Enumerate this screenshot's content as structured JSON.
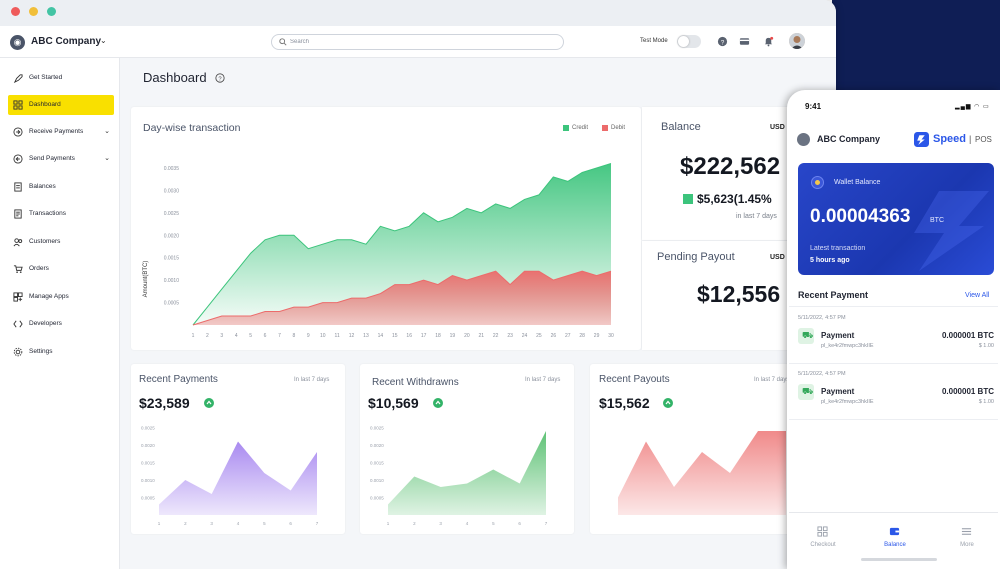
{
  "window": {
    "controls": [
      "close",
      "minimize",
      "maximize"
    ]
  },
  "topbar": {
    "company": "ABC Company",
    "search_placeholder": "Search",
    "test_mode_label": "Test Mode",
    "test_mode_on": false,
    "icons": [
      "help-icon",
      "card-icon",
      "bell-icon",
      "avatar"
    ]
  },
  "sidebar": {
    "items": [
      {
        "label": "Get Started",
        "icon": "rocket-icon",
        "active": false,
        "expandable": false
      },
      {
        "label": "Dashboard",
        "icon": "grid-icon",
        "active": true,
        "expandable": false
      },
      {
        "label": "Receive Payments",
        "icon": "receive-icon",
        "active": false,
        "expandable": true
      },
      {
        "label": "Send Payments",
        "icon": "send-icon",
        "active": false,
        "expandable": true
      },
      {
        "label": "Balances",
        "icon": "balance-icon",
        "active": false,
        "expandable": false
      },
      {
        "label": "Transactions",
        "icon": "transactions-icon",
        "active": false,
        "expandable": false
      },
      {
        "label": "Customers",
        "icon": "customers-icon",
        "active": false,
        "expandable": false
      },
      {
        "label": "Orders",
        "icon": "cart-icon",
        "active": false,
        "expandable": false
      },
      {
        "label": "Manage Apps",
        "icon": "apps-icon",
        "active": false,
        "expandable": false
      },
      {
        "label": "Developers",
        "icon": "code-icon",
        "active": false,
        "expandable": false
      },
      {
        "label": "Settings",
        "icon": "gear-icon",
        "active": false,
        "expandable": false
      }
    ]
  },
  "main": {
    "title": "Dashboard"
  },
  "day_wise": {
    "title": "Day-wise transaction",
    "legend": {
      "credit": "Credit",
      "debit": "Debit"
    },
    "ylabel": "Amount(BTC)",
    "y_ticks": [
      "0.0035",
      "0.0030",
      "0.0025",
      "0.0020",
      "0.0015",
      "0.0010",
      "0.0005"
    ],
    "colors": {
      "credit": "#3cc47c",
      "debit": "#ec6b6b"
    }
  },
  "balance": {
    "title": "Balance",
    "currency": "USD",
    "amount": "$222,562",
    "change": "$5,623(1.45%",
    "period": "in last 7 days"
  },
  "pending": {
    "title": "Pending Payout",
    "currency": "USD",
    "amount": "$12,556"
  },
  "recent_payments": {
    "title": "Recent Payments",
    "period": "In last 7 days",
    "amount": "$23,589",
    "y_ticks": [
      "0.0025",
      "0.0020",
      "0.0015",
      "0.0010",
      "0.0005"
    ],
    "x_ticks": [
      "1",
      "2",
      "3",
      "4",
      "5",
      "6",
      "7"
    ]
  },
  "recent_withdrawns": {
    "title": "Recent Withdrawns",
    "period": "In last 7 days",
    "amount": "$10,569",
    "y_ticks": [
      "0.0025",
      "0.0020",
      "0.0015",
      "0.0010",
      "0.0005"
    ],
    "x_ticks": [
      "1",
      "2",
      "3",
      "4",
      "5",
      "6",
      "7"
    ]
  },
  "recent_payouts": {
    "title": "Recent Payouts",
    "period": "In last 7 days",
    "amount": "$15,562"
  },
  "phone": {
    "time": "9:41",
    "company": "ABC Company",
    "brand": "Speed",
    "brand_suffix": "POS",
    "wallet_label": "Wallet Balance",
    "wallet_amount": "0.00004363",
    "wallet_unit": "BTC",
    "latest_label": "Latest transaction",
    "latest_time": "5 hours ago",
    "recent_title": "Recent Payment",
    "view_all": "View All",
    "payments": [
      {
        "date": "5/11/2022, 4:57 PM",
        "title": "Payment",
        "id": "pl_ke4r2fmwpc3hkIIE",
        "btc": "0.000001 BTC",
        "usd": "$ 1.00"
      },
      {
        "date": "5/11/2022, 4:57 PM",
        "title": "Payment",
        "id": "pl_ke4r2fmwpc3hkIIE",
        "btc": "0.000001 BTC",
        "usd": "$ 1.00"
      }
    ],
    "tabs": [
      {
        "label": "Checkout",
        "icon": "grid-icon",
        "active": false
      },
      {
        "label": "Balance",
        "icon": "wallet-icon",
        "active": true
      },
      {
        "label": "More",
        "icon": "menu-icon",
        "active": false
      }
    ]
  },
  "chart_data": [
    {
      "type": "area",
      "title": "Day-wise transaction",
      "xlabel": "",
      "ylabel": "Amount(BTC)",
      "categories": [
        "1",
        "2",
        "3",
        "4",
        "5",
        "6",
        "7",
        "8",
        "9",
        "10",
        "11",
        "12",
        "13",
        "14",
        "15",
        "16",
        "17",
        "18",
        "19",
        "20",
        "21",
        "22",
        "23",
        "24",
        "25",
        "26",
        "27",
        "28",
        "29",
        "30"
      ],
      "ylim": [
        0,
        0.0037
      ],
      "series": [
        {
          "name": "Credit",
          "values": [
            0.0,
            0.0004,
            0.0008,
            0.0012,
            0.0016,
            0.0019,
            0.002,
            0.002,
            0.0017,
            0.0018,
            0.0019,
            0.0019,
            0.0018,
            0.0022,
            0.0021,
            0.0022,
            0.0025,
            0.0023,
            0.0024,
            0.0026,
            0.0025,
            0.0027,
            0.0026,
            0.0028,
            0.0029,
            0.0033,
            0.0032,
            0.0034,
            0.0035,
            0.0036
          ]
        },
        {
          "name": "Debit",
          "values": [
            0.0,
            0.0001,
            0.0002,
            0.0002,
            0.0002,
            0.0003,
            0.0003,
            0.0004,
            0.0004,
            0.0005,
            0.0005,
            0.0006,
            0.0006,
            0.0007,
            0.0009,
            0.0009,
            0.001,
            0.0009,
            0.0011,
            0.001,
            0.0011,
            0.0012,
            0.0009,
            0.0012,
            0.0012,
            0.001,
            0.0011,
            0.0012,
            0.0011,
            0.0012
          ]
        }
      ],
      "grid": false,
      "legend": "top-right"
    },
    {
      "type": "area",
      "title": "Recent Payments",
      "categories": [
        "1",
        "2",
        "3",
        "4",
        "5",
        "6",
        "7"
      ],
      "ylim": [
        0,
        0.0026
      ],
      "series": [
        {
          "name": "",
          "values": [
            0.0003,
            0.001,
            0.0006,
            0.0021,
            0.0012,
            0.0007,
            0.0018
          ]
        }
      ],
      "color": "#a98af0"
    },
    {
      "type": "area",
      "title": "Recent Withdrawns",
      "categories": [
        "1",
        "2",
        "3",
        "4",
        "5",
        "6",
        "7"
      ],
      "ylim": [
        0,
        0.0026
      ],
      "series": [
        {
          "name": "",
          "values": [
            0.0003,
            0.0011,
            0.0008,
            0.0009,
            0.0013,
            0.0009,
            0.0024
          ]
        }
      ],
      "color": "#5fc276"
    },
    {
      "type": "area",
      "title": "Recent Payouts",
      "categories": [
        "1",
        "2",
        "3",
        "4",
        "5",
        "6",
        "7"
      ],
      "ylim": [
        0,
        0.0026
      ],
      "series": [
        {
          "name": "",
          "values": [
            0.0005,
            0.0021,
            0.0008,
            0.0018,
            0.0012,
            0.0024,
            0.0024
          ]
        }
      ],
      "color": "#f08a8a"
    }
  ]
}
